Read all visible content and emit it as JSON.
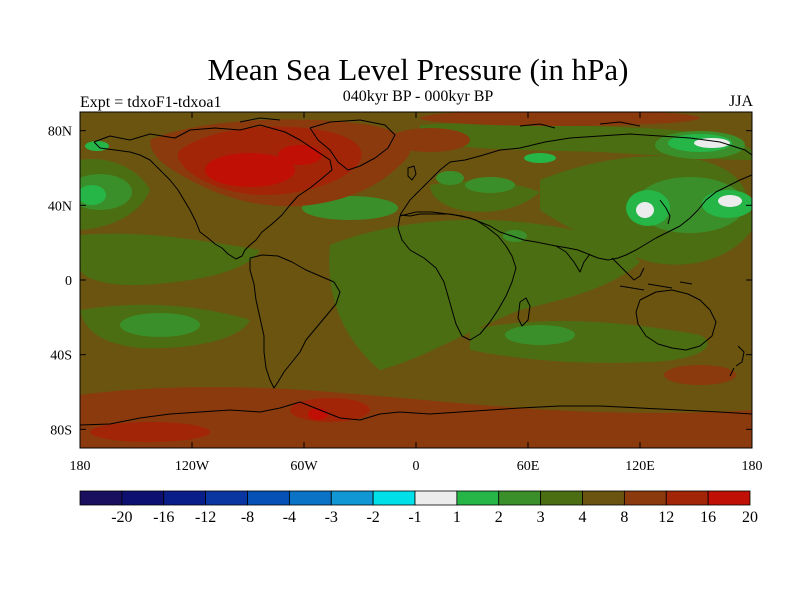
{
  "title": "Mean Sea Level Pressure (in hPa)",
  "subtitle": "040kyr BP - 000kyr BP",
  "experiment": "Expt = tdxoF1-tdxoa1",
  "season": "JJA",
  "map": {
    "projection": "cylindrical equidistant",
    "lon_range": [
      -180,
      180
    ],
    "lat_range": [
      -90,
      90
    ],
    "lat_ticks": [
      {
        "value": 80,
        "label": "80N"
      },
      {
        "value": 40,
        "label": "40N"
      },
      {
        "value": 0,
        "label": "0"
      },
      {
        "value": -40,
        "label": "40S"
      },
      {
        "value": -80,
        "label": "80S"
      }
    ],
    "lon_ticks": [
      {
        "value": -180,
        "label": "180"
      },
      {
        "value": -120,
        "label": "120W"
      },
      {
        "value": -60,
        "label": "60W"
      },
      {
        "value": 0,
        "label": "0"
      },
      {
        "value": 60,
        "label": "60E"
      },
      {
        "value": 120,
        "label": "120E"
      },
      {
        "value": 180,
        "label": "180"
      }
    ]
  },
  "colorbar": {
    "colors": [
      "#1a0e5e",
      "#0d1070",
      "#0a1e8a",
      "#0a36a2",
      "#0651b5",
      "#0a73c5",
      "#1197d4",
      "#00e0e8",
      "#ececec",
      "#26b547",
      "#3b8f2a",
      "#4b6e12",
      "#6b5410",
      "#8b3a0d",
      "#a32508",
      "#c01006"
    ],
    "labels": [
      "-20",
      "-16",
      "-12",
      "-8",
      "-4",
      "-3",
      "-2",
      "-1",
      "1",
      "2",
      "3",
      "4",
      "8",
      "12",
      "16",
      "20"
    ]
  },
  "palette": {
    "background": "#6b5410",
    "level_4": "#4b6e12",
    "level_3": "#3b8f2a",
    "level_2": "#26b547",
    "level_1": "#ececec",
    "level_8": "#8b3a0d",
    "level_12": "#a32508",
    "level_16": "#c01006"
  }
}
